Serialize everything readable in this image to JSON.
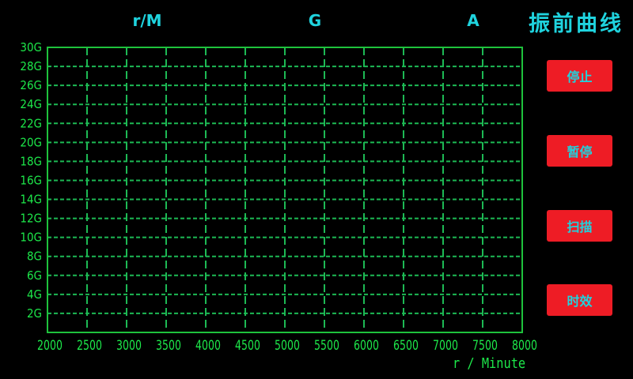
{
  "header": {
    "labels": [
      "r/M",
      "G",
      "A"
    ],
    "title": "振前曲线"
  },
  "buttons": {
    "stop": "停止",
    "pause": "暂停",
    "scan": "扫描",
    "aging": "时效"
  },
  "colors": {
    "background": "#000000",
    "grid": "#1db954",
    "axis_text": "#1de84a",
    "header_text": "#1fd3de",
    "button": "#ee1c25"
  },
  "chart_data": {
    "type": "line",
    "xlabel": "r / Minute",
    "ylabel": "",
    "xlim": [
      2000,
      8000
    ],
    "ylim": [
      0,
      30
    ],
    "x_ticks": [
      "2000",
      "2500",
      "3000",
      "3500",
      "4000",
      "4500",
      "5000",
      "5500",
      "6000",
      "6500",
      "7000",
      "7500",
      "8000"
    ],
    "y_ticks": [
      "2G",
      "4G",
      "6G",
      "8G",
      "10G",
      "12G",
      "14G",
      "16G",
      "18G",
      "20G",
      "22G",
      "24G",
      "26G",
      "28G",
      "30G"
    ],
    "grid": true,
    "series": []
  }
}
